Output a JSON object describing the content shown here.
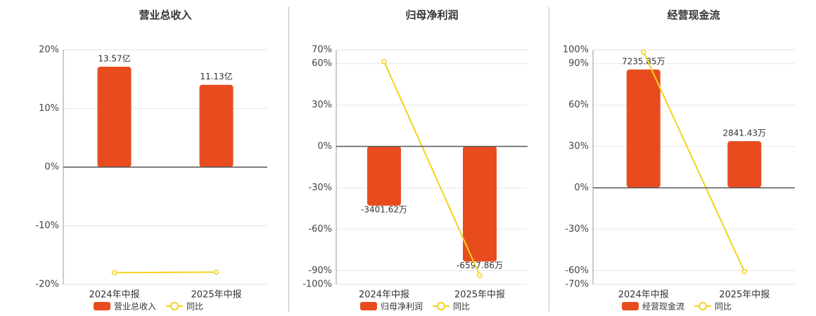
{
  "chart_data": [
    {
      "type": "bar",
      "title": "营业总收入",
      "categories": [
        "2024年中报",
        "2025年中报"
      ],
      "series": [
        {
          "name": "营业总收入",
          "color": "#e84c1e",
          "values": [
            13.57,
            11.13
          ],
          "value_labels": [
            "13.57亿",
            "11.13亿"
          ],
          "axis": "y2"
        },
        {
          "name": "同比",
          "type": "line",
          "color": "#f2d21b",
          "values": [
            -18,
            -17.9
          ]
        }
      ],
      "ylim": [
        -20,
        20
      ],
      "yticks": [
        {
          "value": -20,
          "label": "-20%"
        },
        {
          "value": -10,
          "label": "-10%"
        },
        {
          "value": 0,
          "label": "0%"
        },
        {
          "value": 10,
          "label": "10%"
        },
        {
          "value": 20,
          "label": "20%"
        }
      ],
      "y2lim": [
        -15.85,
        15.85
      ],
      "grid": true
    },
    {
      "type": "bar",
      "title": "归母净利润",
      "categories": [
        "2024年中报",
        "2025年中报"
      ],
      "series": [
        {
          "name": "归母净利润",
          "color": "#e84c1e",
          "values": [
            -3401.62,
            -6597.86
          ],
          "value_labels": [
            "-3401.62万",
            "-6597.86万"
          ],
          "axis": "y2"
        },
        {
          "name": "同比",
          "type": "line",
          "color": "#f2d21b",
          "values": [
            61.5,
            -93.5
          ]
        }
      ],
      "ylim": [
        -100,
        70
      ],
      "yticks": [
        {
          "value": -100,
          "label": "-100%"
        },
        {
          "value": -90,
          "label": "-90%"
        },
        {
          "value": -60,
          "label": "-60%"
        },
        {
          "value": -30,
          "label": "-30%"
        },
        {
          "value": 0,
          "label": "0%"
        },
        {
          "value": 30,
          "label": "30%"
        },
        {
          "value": 60,
          "label": "60%"
        },
        {
          "value": 70,
          "label": "70%"
        }
      ],
      "y2lim": [
        -7900,
        5500
      ],
      "grid": true
    },
    {
      "type": "bar",
      "title": "经营现金流",
      "categories": [
        "2024年中报",
        "2025年中报"
      ],
      "series": [
        {
          "name": "经营现金流",
          "color": "#e84c1e",
          "values": [
            7235.85,
            2841.43
          ],
          "value_labels": [
            "7235.85万",
            "2841.43万"
          ],
          "axis": "y2"
        },
        {
          "name": "同比",
          "type": "line",
          "color": "#f2d21b",
          "values": [
            98.5,
            -60.7
          ]
        }
      ],
      "ylim": [
        -70,
        100
      ],
      "yticks": [
        {
          "value": -70,
          "label": "-70%"
        },
        {
          "value": -60,
          "label": "-60%"
        },
        {
          "value": -30,
          "label": "-30%"
        },
        {
          "value": 0,
          "label": "0%"
        },
        {
          "value": 30,
          "label": "30%"
        },
        {
          "value": 60,
          "label": "60%"
        },
        {
          "value": 90,
          "label": "90%"
        },
        {
          "value": 100,
          "label": "100%"
        }
      ],
      "y2lim": [
        -5940,
        8440
      ],
      "grid": true
    }
  ]
}
